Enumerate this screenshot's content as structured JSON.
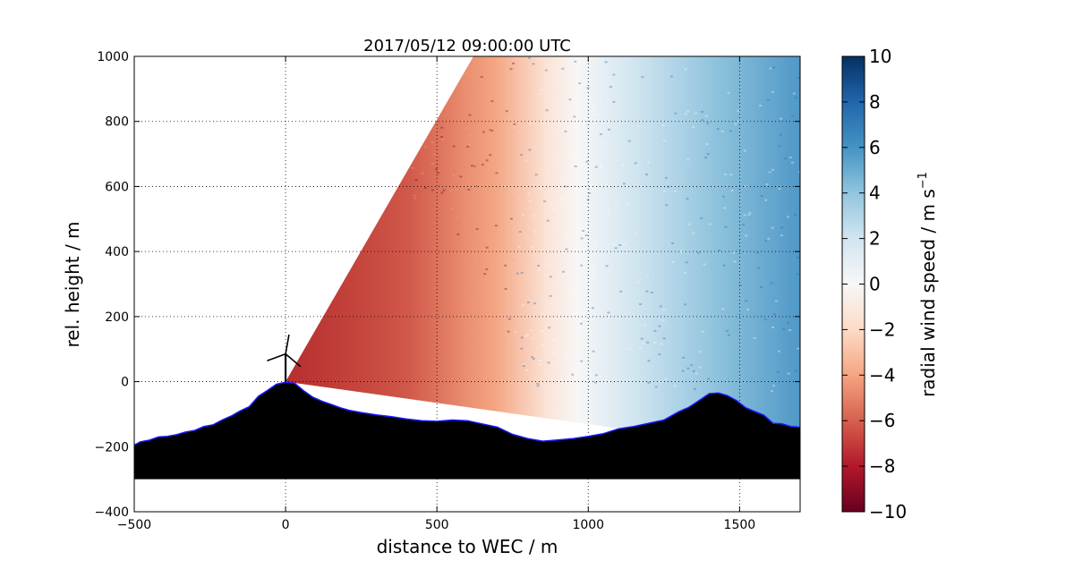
{
  "chart_data": {
    "type": "heatmap",
    "title": "2017/05/12 09:00:00 UTC",
    "xlabel": "distance to WEC / m",
    "ylabel": "rel. height / m",
    "xlim": [
      -500,
      1700
    ],
    "ylim": [
      -400,
      1000
    ],
    "x_ticks": [
      -500,
      0,
      500,
      1000,
      1500
    ],
    "y_ticks": [
      -400,
      -200,
      0,
      200,
      400,
      600,
      800,
      1000
    ],
    "x_tick_labels": [
      "−500",
      "0",
      "500",
      "1000",
      "1500"
    ],
    "y_tick_labels": [
      "−400",
      "−200",
      "0",
      "200",
      "400",
      "600",
      "800",
      "1000"
    ],
    "grid": true,
    "colorbar": {
      "label": "radial wind speed / m s",
      "label_superscript": "−1",
      "range": [
        -10,
        10
      ],
      "ticks": [
        -10,
        -8,
        -6,
        -4,
        -2,
        0,
        2,
        4,
        6,
        8,
        10
      ],
      "tick_labels": [
        "−10",
        "−8",
        "−6",
        "−4",
        "−2",
        "0",
        "2",
        "4",
        "6",
        "8",
        "10"
      ],
      "colormap": "RdBu",
      "colors": [
        "#67001f",
        "#b2182b",
        "#d6604d",
        "#f4a582",
        "#fddbc7",
        "#f7f7f7",
        "#d1e5f0",
        "#92c5de",
        "#4393c3",
        "#2166ac",
        "#053061"
      ]
    },
    "scan_origin": [
      0,
      0
    ],
    "scan_sector_elevation_deg": [
      -8,
      60
    ],
    "radial_velocity_trend": "about -9 m/s near x = 0, crossing 0 m/s near x = 1000 m, up to about +4 m/s near x = 1650 m at high elevation",
    "terrain_profile": {
      "x": [
        -500,
        -480,
        -450,
        -420,
        -390,
        -360,
        -330,
        -300,
        -270,
        -240,
        -210,
        -180,
        -150,
        -120,
        -90,
        -60,
        -30,
        0,
        30,
        60,
        90,
        120,
        150,
        180,
        210,
        250,
        300,
        350,
        400,
        450,
        500,
        550,
        600,
        650,
        700,
        750,
        800,
        850,
        900,
        950,
        1000,
        1050,
        1100,
        1150,
        1200,
        1250,
        1300,
        1330,
        1360,
        1400,
        1430,
        1460,
        1490,
        1520,
        1550,
        1580,
        1610,
        1640,
        1670,
        1700
      ],
      "y": [
        -195,
        -185,
        -180,
        -170,
        -168,
        -163,
        -155,
        -150,
        -138,
        -133,
        -118,
        -106,
        -90,
        -77,
        -45,
        -27,
        -8,
        -2,
        -5,
        -28,
        -48,
        -60,
        -70,
        -80,
        -88,
        -95,
        -102,
        -108,
        -115,
        -120,
        -122,
        -118,
        -120,
        -130,
        -140,
        -162,
        -175,
        -183,
        -179,
        -175,
        -168,
        -160,
        -145,
        -138,
        -128,
        -118,
        -92,
        -80,
        -62,
        -37,
        -35,
        -43,
        -58,
        -80,
        -92,
        -103,
        -128,
        -130,
        -138,
        -140
      ],
      "base": -300,
      "fill_color": "#000000",
      "outline_color": "#1a1aff"
    },
    "wind_turbine": {
      "x": 0,
      "hub_height": 85
    }
  }
}
